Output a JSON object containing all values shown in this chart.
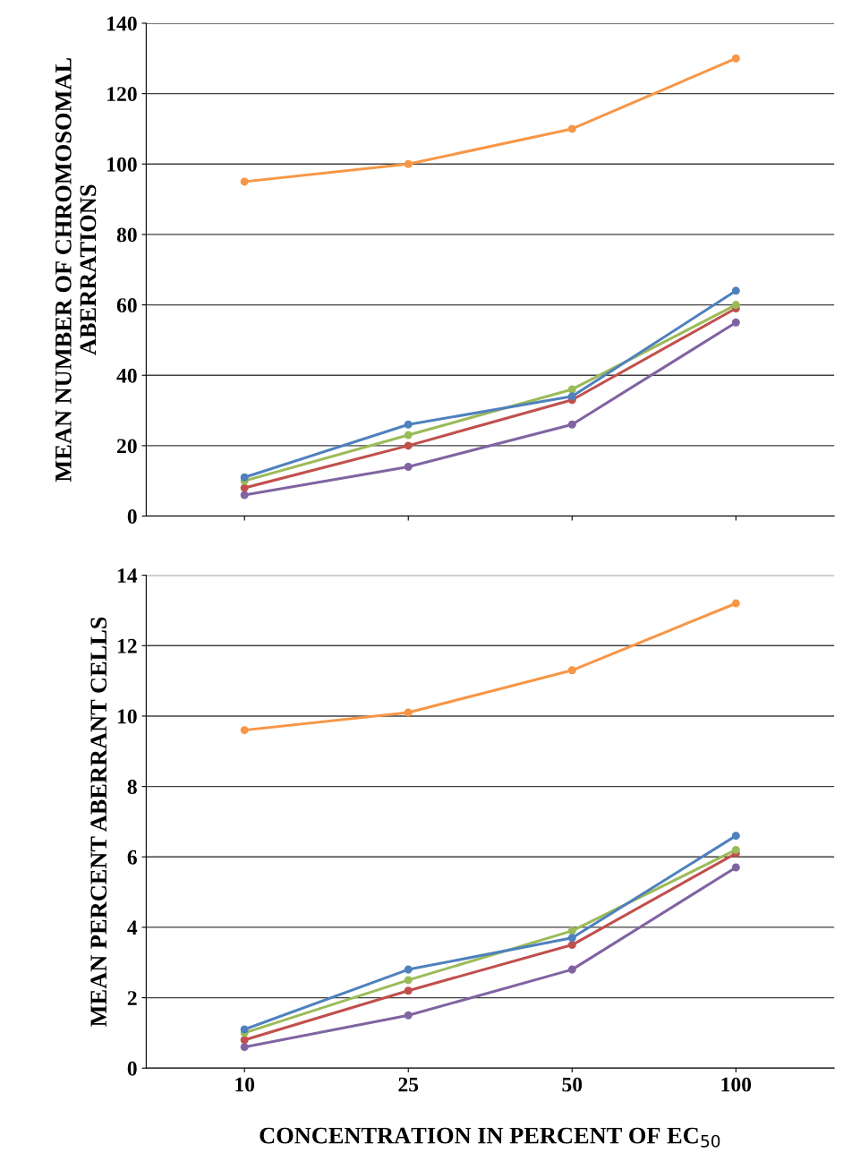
{
  "chart_data": [
    {
      "type": "line",
      "ylabel": "MEAN NUMBER OF CHROMOSOMAL ABERRATIONS",
      "categories": [
        "10",
        "25",
        "50",
        "100"
      ],
      "ylim": [
        0,
        140
      ],
      "yticks": [
        0,
        20,
        40,
        60,
        80,
        100,
        120,
        140
      ],
      "grid": "y",
      "marker": "circle",
      "tick_labels": "y",
      "series": [
        {
          "color": "#f79646",
          "values": [
            95,
            100,
            110,
            130
          ]
        },
        {
          "color": "#4f81bd",
          "values": [
            11,
            26,
            34,
            64
          ]
        },
        {
          "color": "#9bbb59",
          "values": [
            10,
            23,
            36,
            60
          ]
        },
        {
          "color": "#c0504d",
          "values": [
            8,
            20,
            33,
            59
          ]
        },
        {
          "color": "#8064a2",
          "values": [
            6,
            14,
            26,
            55
          ]
        }
      ]
    },
    {
      "type": "line",
      "ylabel": "MEAN PERCENT ABERRANT CELLS",
      "xlabel": "CONCENTRATION IN PERCENT OF EC$_{50}$",
      "categories": [
        "10",
        "25",
        "50",
        "100"
      ],
      "ylim": [
        0,
        14
      ],
      "yticks": [
        0,
        2,
        4,
        6,
        8,
        10,
        12,
        14
      ],
      "grid": "y",
      "marker": "circle",
      "series": [
        {
          "color": "#f79646",
          "values": [
            9.6,
            10.1,
            11.3,
            13.2
          ]
        },
        {
          "color": "#4f81bd",
          "values": [
            1.1,
            2.8,
            3.7,
            6.6
          ]
        },
        {
          "color": "#9bbb59",
          "values": [
            1.0,
            2.5,
            3.9,
            6.2
          ]
        },
        {
          "color": "#c0504d",
          "values": [
            0.8,
            2.2,
            3.5,
            6.1
          ]
        },
        {
          "color": "#8064a2",
          "values": [
            0.6,
            1.5,
            2.8,
            5.7
          ]
        }
      ]
    }
  ]
}
